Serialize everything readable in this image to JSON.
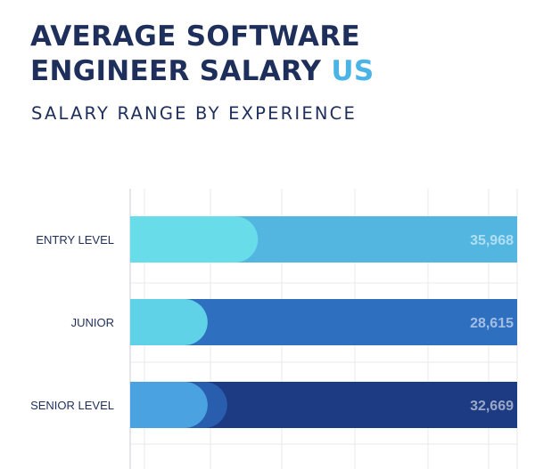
{
  "title": {
    "line1": "AVERAGE SOFTWARE",
    "line2_main": "ENGINEER SALARY",
    "line2_accent": "US"
  },
  "subtitle": "SALARY RANGE BY EXPERIENCE",
  "colors": {
    "title": "#1f2f5c",
    "title_accent": "#4bb4e6",
    "grid": "#e6e8ee",
    "axis": "#c9ccd4"
  },
  "chart_data": {
    "type": "bar",
    "orientation": "horizontal",
    "categories": [
      "ENTRY LEVEL",
      "JUNIOR",
      "SENIOR LEVEL"
    ],
    "values": [
      35968,
      28615,
      32669
    ],
    "value_labels": [
      "35,968",
      "28,615",
      "32,669"
    ],
    "bar_colors": [
      "#52b6e0",
      "#2f6fc0",
      "#1d3b82"
    ],
    "highlight_colors": [
      "#69dcea",
      "#5fd2e8",
      "#4aa3e0"
    ],
    "highlight_fraction": [
      0.33,
      0.2,
      0.2
    ],
    "grid": true,
    "legend": false,
    "title": "",
    "xlabel": "",
    "ylabel": ""
  }
}
